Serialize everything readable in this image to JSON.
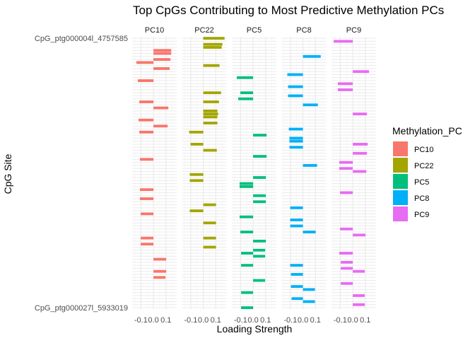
{
  "chart_data": {
    "type": "bar",
    "orientation": "horizontal",
    "faceted": true,
    "title": "Top CpGs Contributing to Most Predictive Methylation PCs",
    "xlabel": "Loading Strength",
    "ylabel": "CpG Site",
    "xlim": [
      -0.17,
      0.186
    ],
    "x_ticks": [
      -0.1,
      0.0,
      0.1
    ],
    "x_tick_labels": [
      "-0.1",
      "0.0",
      "0.1"
    ],
    "grid": true,
    "row_count": 90,
    "row_labels_legible": {
      "0": "CpG_ptg000004l_4757585",
      "89": "CpG_ptg000027l_5933019"
    },
    "legend": {
      "title": "Methylation_PC",
      "placement": "right"
    },
    "series": [
      {
        "name": "PC10",
        "color": "#F8766D",
        "rows": [
          4,
          5,
          7,
          8,
          10,
          14,
          21,
          23,
          27,
          29,
          31,
          40,
          50,
          53,
          58,
          66,
          68,
          73,
          77,
          79
        ],
        "values": [
          0.142,
          0.142,
          0.136,
          -0.136,
          0.13,
          -0.125,
          -0.113,
          0.119,
          -0.119,
          0.113,
          -0.113,
          -0.108,
          -0.108,
          -0.108,
          -0.102,
          -0.102,
          -0.102,
          0.102,
          0.102,
          0.096
        ]
      },
      {
        "name": "PC22",
        "color": "#A3A500",
        "rows": [
          0,
          2,
          3,
          9,
          18,
          21,
          24,
          25,
          26,
          28,
          31,
          35,
          37,
          45,
          47,
          55,
          57,
          61,
          66,
          69
        ],
        "values": [
          0.17,
          0.153,
          0.147,
          0.13,
          0.142,
          0.125,
          0.113,
          0.119,
          0.113,
          0.113,
          -0.113,
          -0.102,
          0.108,
          -0.108,
          -0.108,
          0.102,
          -0.108,
          0.102,
          0.102,
          0.102
        ]
      },
      {
        "name": "PC5",
        "color": "#00BF7D",
        "rows": [
          13,
          18,
          20,
          32,
          39,
          46,
          48,
          49,
          52,
          54,
          59,
          64,
          67,
          70,
          71,
          72,
          75,
          80,
          84,
          89
        ],
        "values": [
          -0.13,
          -0.102,
          -0.119,
          0.108,
          0.108,
          0.102,
          -0.108,
          -0.108,
          0.102,
          0.102,
          -0.108,
          -0.102,
          0.102,
          0.096,
          -0.096,
          0.096,
          -0.096,
          0.096,
          -0.096,
          -0.096
        ]
      },
      {
        "name": "PC8",
        "color": "#00B0F6",
        "rows": [
          6,
          12,
          16,
          19,
          22,
          30,
          33,
          34,
          36,
          42,
          56,
          60,
          62,
          64,
          75,
          78,
          82,
          83,
          86,
          87
        ],
        "values": [
          0.142,
          -0.125,
          -0.119,
          -0.119,
          0.119,
          -0.113,
          -0.108,
          -0.108,
          -0.108,
          0.113,
          -0.102,
          -0.102,
          -0.102,
          0.102,
          -0.102,
          -0.096,
          -0.096,
          0.096,
          -0.091,
          0.096
        ]
      },
      {
        "name": "PC9",
        "color": "#E76BF3",
        "rows": [
          1,
          11,
          15,
          17,
          25,
          35,
          38,
          41,
          43,
          44,
          51,
          63,
          65,
          71,
          74,
          76,
          77,
          81,
          85,
          88
        ],
        "values": [
          -0.153,
          0.13,
          -0.119,
          -0.119,
          0.113,
          0.119,
          0.113,
          -0.108,
          -0.108,
          0.108,
          -0.102,
          -0.102,
          0.102,
          -0.108,
          -0.096,
          -0.096,
          0.096,
          -0.096,
          0.096,
          0.096
        ]
      }
    ]
  }
}
